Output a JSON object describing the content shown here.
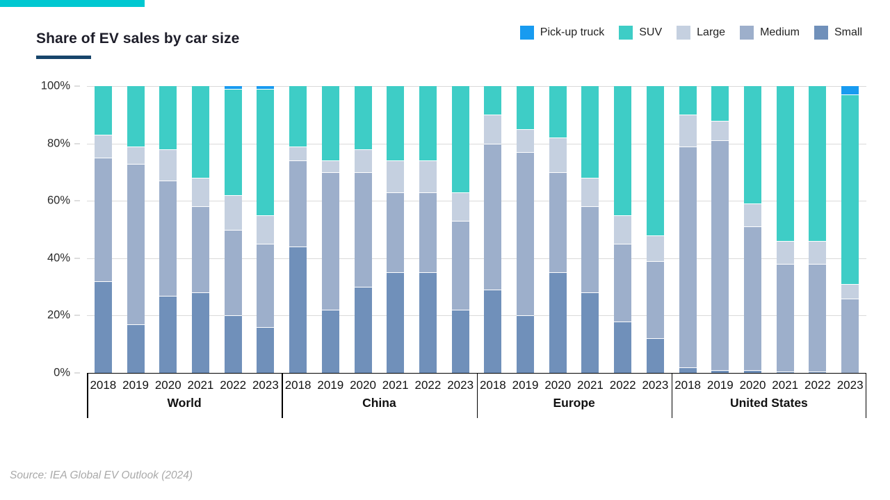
{
  "header": {
    "accent_bar_color": "#00c8d1",
    "title": "Share of EV sales by car size",
    "title_underline_color": "#17456b"
  },
  "legend": {
    "position": "top-right",
    "items": [
      {
        "label": "Pick-up truck",
        "color": "#189bf0"
      },
      {
        "label": "SUV",
        "color": "#3ecdc6"
      },
      {
        "label": "Large",
        "color": "#c5d0e0"
      },
      {
        "label": "Medium",
        "color": "#9dafcb"
      },
      {
        "label": "Small",
        "color": "#7090ba"
      }
    ]
  },
  "chart_data": {
    "type": "bar",
    "stacked": true,
    "unit": "percent",
    "title": "Share of EV sales by car size",
    "xlabel": "",
    "ylabel": "",
    "ylim": [
      0,
      100
    ],
    "yticks": [
      "0%",
      "20%",
      "40%",
      "60%",
      "80%",
      "100%"
    ],
    "grid": true,
    "legend_position": "top-right",
    "groups": [
      "World",
      "China",
      "Europe",
      "United States"
    ],
    "years": [
      "2018",
      "2019",
      "2020",
      "2021",
      "2022",
      "2023"
    ],
    "series_order_bottom_to_top": [
      "Small",
      "Medium",
      "Large",
      "SUV",
      "Pick-up truck"
    ],
    "series_colors": {
      "Pick-up truck": "#189bf0",
      "SUV": "#3ecdc6",
      "Large": "#c5d0e0",
      "Medium": "#9dafcb",
      "Small": "#7090ba"
    },
    "values": {
      "World": {
        "Small": [
          32,
          17,
          27,
          28,
          20,
          16
        ],
        "Medium": [
          43,
          56,
          40,
          30,
          30,
          29
        ],
        "Large": [
          8,
          6,
          11,
          10,
          12,
          10
        ],
        "SUV": [
          17,
          21,
          22,
          32,
          37,
          44
        ],
        "Pick-up truck": [
          0,
          0,
          0,
          0,
          1,
          1
        ]
      },
      "China": {
        "Small": [
          44,
          22,
          30,
          35,
          35,
          22
        ],
        "Medium": [
          30,
          48,
          40,
          28,
          28,
          31
        ],
        "Large": [
          5,
          4,
          8,
          11,
          11,
          10
        ],
        "SUV": [
          21,
          26,
          22,
          26,
          26,
          37
        ],
        "Pick-up truck": [
          0,
          0,
          0,
          0,
          0,
          0
        ]
      },
      "Europe": {
        "Small": [
          29,
          20,
          35,
          28,
          18,
          12
        ],
        "Medium": [
          51,
          57,
          35,
          30,
          27,
          27
        ],
        "Large": [
          10,
          8,
          12,
          10,
          10,
          9
        ],
        "SUV": [
          10,
          15,
          18,
          32,
          45,
          52
        ],
        "Pick-up truck": [
          0,
          0,
          0,
          0,
          0,
          0
        ]
      },
      "United States": {
        "Small": [
          2,
          1,
          1,
          0.5,
          0.5,
          0
        ],
        "Medium": [
          77,
          80,
          50,
          37.5,
          37.5,
          26
        ],
        "Large": [
          11,
          7,
          8,
          8,
          8,
          5
        ],
        "SUV": [
          10,
          12,
          41,
          54,
          54,
          66
        ],
        "Pick-up truck": [
          0,
          0,
          0,
          0,
          0,
          3
        ]
      }
    }
  },
  "footer": {
    "source": "Source: IEA Global EV Outlook (2024)"
  }
}
